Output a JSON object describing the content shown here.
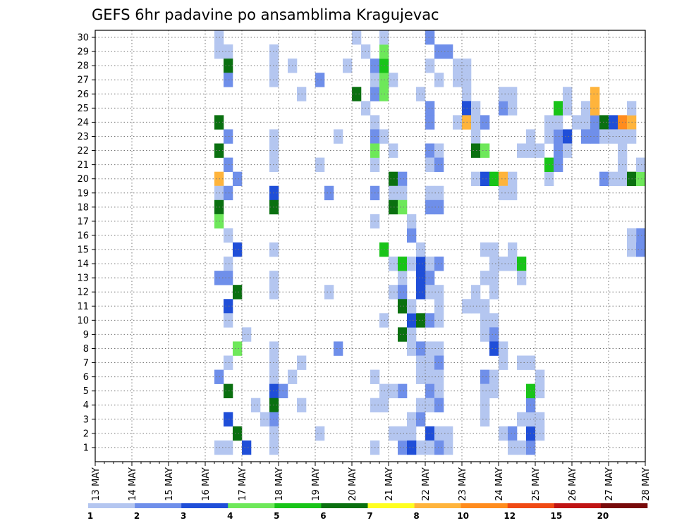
{
  "chart_data": {
    "type": "heatmap",
    "title": "GEFS 6hr padavine po ansamblima Kragujevac",
    "x_tick_labels": [
      "13 MAY",
      "14 MAY",
      "15 MAY",
      "16 MAY",
      "17 MAY",
      "18 MAY",
      "19 MAY",
      "20 MAY",
      "21 MAY",
      "22 MAY",
      "23 MAY",
      "24 MAY",
      "25 MAY",
      "26 MAY",
      "27 MAY",
      "28 MAY"
    ],
    "y_tick_labels": [
      "1",
      "2",
      "3",
      "4",
      "5",
      "6",
      "7",
      "8",
      "9",
      "10",
      "11",
      "12",
      "13",
      "14",
      "15",
      "16",
      "17",
      "18",
      "19",
      "20",
      "21",
      "22",
      "23",
      "24",
      "25",
      "26",
      "27",
      "28",
      "29",
      "30"
    ],
    "xlim_days": [
      13,
      28
    ],
    "ylim_members": [
      0,
      30
    ],
    "time_step_hours": 6,
    "grid": true,
    "legend": {
      "position": "bottom",
      "boundaries": [
        "1",
        "2",
        "3",
        "4",
        "5",
        "6",
        "7",
        "8",
        "10",
        "12",
        "15",
        "20"
      ],
      "colors": [
        "#b4c6f0",
        "#6f8fea",
        "#1f4ed8",
        "#6ee85a",
        "#18c418",
        "#0a7010",
        "#ffff20",
        "#ffb43c",
        "#ff8c1e",
        "#f04a14",
        "#c01414",
        "#780a0a"
      ]
    },
    "cells_format": "[time_index from 13 MAY 00 UTC in 6h steps, ensemble member, colour class 1..12]",
    "cells": [
      [
        13,
        30,
        1
      ],
      [
        13,
        29,
        1
      ],
      [
        14,
        29,
        1
      ],
      [
        14,
        28,
        6
      ],
      [
        14,
        27,
        2
      ],
      [
        13,
        24,
        6
      ],
      [
        14,
        23,
        2
      ],
      [
        13,
        22,
        6
      ],
      [
        14,
        21,
        2
      ],
      [
        13,
        20,
        8
      ],
      [
        15,
        20,
        2
      ],
      [
        13,
        19,
        1
      ],
      [
        14,
        19,
        2
      ],
      [
        13,
        18,
        6
      ],
      [
        13,
        17,
        4
      ],
      [
        14,
        16,
        1
      ],
      [
        15,
        15,
        3
      ],
      [
        14,
        14,
        1
      ],
      [
        13,
        13,
        2
      ],
      [
        14,
        13,
        2
      ],
      [
        15,
        12,
        6
      ],
      [
        14,
        11,
        3
      ],
      [
        14,
        10,
        1
      ],
      [
        16,
        9,
        1
      ],
      [
        15,
        8,
        4
      ],
      [
        14,
        7,
        1
      ],
      [
        13,
        6,
        2
      ],
      [
        14,
        5,
        6
      ],
      [
        14,
        3,
        3
      ],
      [
        15,
        2,
        6
      ],
      [
        16,
        1,
        3
      ],
      [
        14,
        1,
        1
      ],
      [
        13,
        1,
        1
      ],
      [
        19,
        29,
        1
      ],
      [
        19,
        28,
        1
      ],
      [
        19,
        27,
        1
      ],
      [
        19,
        23,
        1
      ],
      [
        19,
        22,
        1
      ],
      [
        19,
        21,
        1
      ],
      [
        19,
        19,
        3
      ],
      [
        19,
        18,
        6
      ],
      [
        19,
        15,
        1
      ],
      [
        19,
        13,
        1
      ],
      [
        19,
        12,
        1
      ],
      [
        19,
        8,
        1
      ],
      [
        19,
        7,
        1
      ],
      [
        19,
        6,
        1
      ],
      [
        19,
        5,
        3
      ],
      [
        19,
        4,
        6
      ],
      [
        19,
        3,
        2
      ],
      [
        19,
        2,
        1
      ],
      [
        19,
        1,
        1
      ],
      [
        18,
        3,
        1
      ],
      [
        17,
        4,
        1
      ],
      [
        22,
        4,
        1
      ],
      [
        21,
        6,
        1
      ],
      [
        20,
        5,
        2
      ],
      [
        22,
        7,
        1
      ],
      [
        22,
        26,
        1
      ],
      [
        21,
        28,
        1
      ],
      [
        24,
        27,
        2
      ],
      [
        24,
        21,
        1
      ],
      [
        26,
        23,
        1
      ],
      [
        25,
        19,
        2
      ],
      [
        25,
        12,
        1
      ],
      [
        26,
        8,
        2
      ],
      [
        24,
        2,
        1
      ],
      [
        28,
        30,
        1
      ],
      [
        27,
        28,
        1
      ],
      [
        28,
        26,
        6
      ],
      [
        29,
        25,
        1
      ],
      [
        30,
        24,
        1
      ],
      [
        31,
        28,
        1
      ],
      [
        32,
        27,
        1
      ],
      [
        30,
        21,
        1
      ],
      [
        30,
        19,
        2
      ],
      [
        30,
        17,
        1
      ],
      [
        32,
        14,
        1
      ],
      [
        33,
        13,
        1
      ],
      [
        31,
        10,
        1
      ],
      [
        30,
        6,
        1
      ],
      [
        31,
        5,
        1
      ],
      [
        30,
        4,
        1
      ],
      [
        31,
        4,
        1
      ],
      [
        33,
        5,
        2
      ],
      [
        32,
        5,
        1
      ],
      [
        34,
        3,
        1
      ],
      [
        33,
        1,
        2
      ],
      [
        35,
        1,
        1
      ],
      [
        36,
        30,
        2
      ],
      [
        37,
        29,
        2
      ],
      [
        36,
        28,
        1
      ],
      [
        37,
        27,
        1
      ],
      [
        35,
        26,
        1
      ],
      [
        36,
        25,
        2
      ],
      [
        36,
        24,
        2
      ],
      [
        36,
        22,
        2
      ],
      [
        37,
        22,
        1
      ],
      [
        36,
        21,
        1
      ],
      [
        37,
        21,
        2
      ],
      [
        36,
        19,
        1
      ],
      [
        37,
        19,
        1
      ],
      [
        36,
        18,
        2
      ],
      [
        37,
        18,
        2
      ],
      [
        36,
        14,
        1
      ],
      [
        37,
        14,
        2
      ],
      [
        36,
        13,
        2
      ],
      [
        36,
        12,
        1
      ],
      [
        37,
        12,
        1
      ],
      [
        37,
        11,
        1
      ],
      [
        36,
        8,
        1
      ],
      [
        37,
        8,
        1
      ],
      [
        36,
        7,
        1
      ],
      [
        37,
        7,
        2
      ],
      [
        36,
        6,
        1
      ],
      [
        37,
        6,
        1
      ],
      [
        36,
        5,
        2
      ],
      [
        37,
        5,
        1
      ],
      [
        36,
        4,
        1
      ],
      [
        37,
        4,
        2
      ],
      [
        36,
        2,
        3
      ],
      [
        37,
        2,
        1
      ],
      [
        38,
        2,
        1
      ],
      [
        38,
        1,
        1
      ],
      [
        36,
        1,
        1
      ],
      [
        37,
        1,
        2
      ],
      [
        30,
        26,
        2
      ],
      [
        31,
        26,
        4
      ],
      [
        30,
        27,
        1
      ],
      [
        31,
        27,
        4
      ],
      [
        30,
        28,
        2
      ],
      [
        31,
        28,
        5
      ],
      [
        31,
        29,
        4
      ],
      [
        31,
        30,
        1
      ],
      [
        29,
        29,
        1
      ],
      [
        30,
        23,
        2
      ],
      [
        31,
        23,
        1
      ],
      [
        30,
        22,
        4
      ],
      [
        32,
        22,
        1
      ],
      [
        32,
        20,
        6
      ],
      [
        33,
        20,
        2
      ],
      [
        32,
        19,
        1
      ],
      [
        33,
        19,
        1
      ],
      [
        32,
        18,
        6
      ],
      [
        33,
        18,
        4
      ],
      [
        31,
        15,
        5
      ],
      [
        34,
        16,
        2
      ],
      [
        34,
        17,
        1
      ],
      [
        32,
        12,
        1
      ],
      [
        33,
        12,
        2
      ],
      [
        33,
        9,
        6
      ],
      [
        34,
        9,
        1
      ],
      [
        34,
        8,
        1
      ],
      [
        35,
        8,
        2
      ],
      [
        35,
        7,
        1
      ],
      [
        35,
        6,
        1
      ],
      [
        34,
        10,
        3
      ],
      [
        35,
        10,
        6
      ],
      [
        33,
        14,
        5
      ],
      [
        34,
        14,
        1
      ],
      [
        33,
        11,
        6
      ],
      [
        34,
        11,
        1
      ],
      [
        35,
        14,
        3
      ],
      [
        35,
        15,
        1
      ],
      [
        35,
        13,
        3
      ],
      [
        35,
        12,
        3
      ],
      [
        36,
        10,
        2
      ],
      [
        37,
        10,
        1
      ],
      [
        35,
        3,
        2
      ],
      [
        35,
        4,
        1
      ],
      [
        34,
        2,
        1
      ],
      [
        34,
        1,
        3
      ],
      [
        33,
        2,
        1
      ],
      [
        32,
        2,
        1
      ],
      [
        30,
        1,
        1
      ],
      [
        38,
        29,
        2
      ],
      [
        39,
        28,
        1
      ],
      [
        40,
        28,
        1
      ],
      [
        39,
        27,
        1
      ],
      [
        40,
        27,
        1
      ],
      [
        40,
        26,
        1
      ],
      [
        40,
        25,
        3
      ],
      [
        41,
        25,
        1
      ],
      [
        39,
        24,
        1
      ],
      [
        40,
        24,
        8
      ],
      [
        41,
        24,
        1
      ],
      [
        42,
        24,
        2
      ],
      [
        41,
        23,
        1
      ],
      [
        41,
        22,
        6
      ],
      [
        42,
        22,
        4
      ],
      [
        41,
        20,
        1
      ],
      [
        42,
        20,
        3
      ],
      [
        43,
        20,
        5
      ],
      [
        44,
        20,
        8
      ],
      [
        45,
        20,
        1
      ],
      [
        44,
        19,
        1
      ],
      [
        45,
        19,
        1
      ],
      [
        42,
        15,
        1
      ],
      [
        43,
        15,
        1
      ],
      [
        45,
        15,
        1
      ],
      [
        45,
        14,
        1
      ],
      [
        46,
        14,
        5
      ],
      [
        46,
        13,
        1
      ],
      [
        43,
        14,
        1
      ],
      [
        44,
        14,
        1
      ],
      [
        42,
        13,
        1
      ],
      [
        43,
        13,
        1
      ],
      [
        43,
        12,
        1
      ],
      [
        41,
        12,
        1
      ],
      [
        40,
        11,
        1
      ],
      [
        41,
        11,
        1
      ],
      [
        42,
        11,
        1
      ],
      [
        42,
        10,
        1
      ],
      [
        43,
        10,
        1
      ],
      [
        42,
        9,
        1
      ],
      [
        43,
        9,
        2
      ],
      [
        43,
        8,
        3
      ],
      [
        44,
        8,
        1
      ],
      [
        44,
        7,
        1
      ],
      [
        46,
        7,
        1
      ],
      [
        42,
        6,
        2
      ],
      [
        43,
        6,
        1
      ],
      [
        42,
        5,
        1
      ],
      [
        43,
        5,
        1
      ],
      [
        42,
        4,
        1
      ],
      [
        42,
        3,
        1
      ],
      [
        44,
        2,
        1
      ],
      [
        45,
        2,
        2
      ],
      [
        45,
        1,
        1
      ],
      [
        46,
        1,
        1
      ],
      [
        47,
        1,
        2
      ],
      [
        47,
        2,
        3
      ],
      [
        48,
        2,
        1
      ],
      [
        46,
        3,
        1
      ],
      [
        47,
        3,
        1
      ],
      [
        48,
        3,
        1
      ],
      [
        47,
        4,
        2
      ],
      [
        47,
        5,
        5
      ],
      [
        48,
        5,
        1
      ],
      [
        48,
        6,
        1
      ],
      [
        47,
        7,
        1
      ],
      [
        44,
        25,
        2
      ],
      [
        45,
        25,
        1
      ],
      [
        45,
        26,
        1
      ],
      [
        44,
        26,
        1
      ],
      [
        46,
        22,
        1
      ],
      [
        47,
        22,
        1
      ],
      [
        48,
        22,
        1
      ],
      [
        47,
        23,
        1
      ],
      [
        49,
        23,
        1
      ],
      [
        49,
        24,
        1
      ],
      [
        49,
        20,
        1
      ],
      [
        49,
        21,
        5
      ],
      [
        50,
        21,
        2
      ],
      [
        50,
        22,
        2
      ],
      [
        50,
        23,
        2
      ],
      [
        51,
        23,
        3
      ],
      [
        51,
        22,
        1
      ],
      [
        50,
        24,
        1
      ],
      [
        50,
        25,
        5
      ],
      [
        51,
        26,
        1
      ],
      [
        51,
        25,
        1
      ],
      [
        52,
        24,
        1
      ],
      [
        53,
        24,
        1
      ],
      [
        53,
        25,
        1
      ],
      [
        54,
        24,
        2
      ],
      [
        54,
        26,
        8
      ],
      [
        54,
        25,
        8
      ],
      [
        55,
        24,
        6
      ],
      [
        56,
        24,
        3
      ],
      [
        57,
        24,
        9
      ],
      [
        58,
        24,
        8
      ],
      [
        58,
        25,
        1
      ],
      [
        58,
        23,
        1
      ],
      [
        53,
        23,
        2
      ],
      [
        54,
        23,
        2
      ],
      [
        55,
        23,
        1
      ],
      [
        56,
        23,
        1
      ],
      [
        57,
        23,
        1
      ],
      [
        57,
        22,
        1
      ],
      [
        57,
        21,
        1
      ],
      [
        55,
        20,
        2
      ],
      [
        56,
        20,
        1
      ],
      [
        57,
        20,
        1
      ],
      [
        58,
        20,
        6
      ],
      [
        59,
        20,
        4
      ],
      [
        60,
        20,
        2
      ],
      [
        59,
        21,
        1
      ],
      [
        60,
        21,
        2
      ],
      [
        60,
        22,
        3
      ],
      [
        61,
        22,
        1
      ],
      [
        61,
        21,
        1
      ],
      [
        62,
        21,
        1
      ],
      [
        62,
        20,
        1
      ],
      [
        62,
        19,
        1
      ],
      [
        62,
        18,
        1
      ],
      [
        61,
        17,
        1
      ],
      [
        60,
        16,
        1
      ],
      [
        59,
        16,
        2
      ],
      [
        58,
        16,
        1
      ],
      [
        58,
        15,
        1
      ],
      [
        59,
        15,
        2
      ],
      [
        60,
        15,
        1
      ],
      [
        61,
        15,
        1
      ],
      [
        61,
        14,
        1
      ],
      [
        62,
        14,
        1
      ],
      [
        62,
        13,
        1
      ],
      [
        63,
        13,
        1
      ],
      [
        63,
        12,
        1
      ],
      [
        64,
        12,
        1
      ],
      [
        64,
        11,
        1
      ],
      [
        65,
        11,
        1
      ],
      [
        65,
        10,
        1
      ],
      [
        66,
        10,
        1
      ],
      [
        66,
        9,
        1
      ],
      [
        67,
        9,
        1
      ],
      [
        67,
        8,
        1
      ],
      [
        68,
        8,
        1
      ],
      [
        68,
        7,
        1
      ],
      [
        68,
        6,
        1
      ],
      [
        68,
        5,
        1
      ],
      [
        68,
        4,
        1
      ],
      [
        68,
        3,
        1
      ],
      [
        68,
        2,
        1
      ],
      [
        68,
        1,
        1
      ]
    ]
  }
}
